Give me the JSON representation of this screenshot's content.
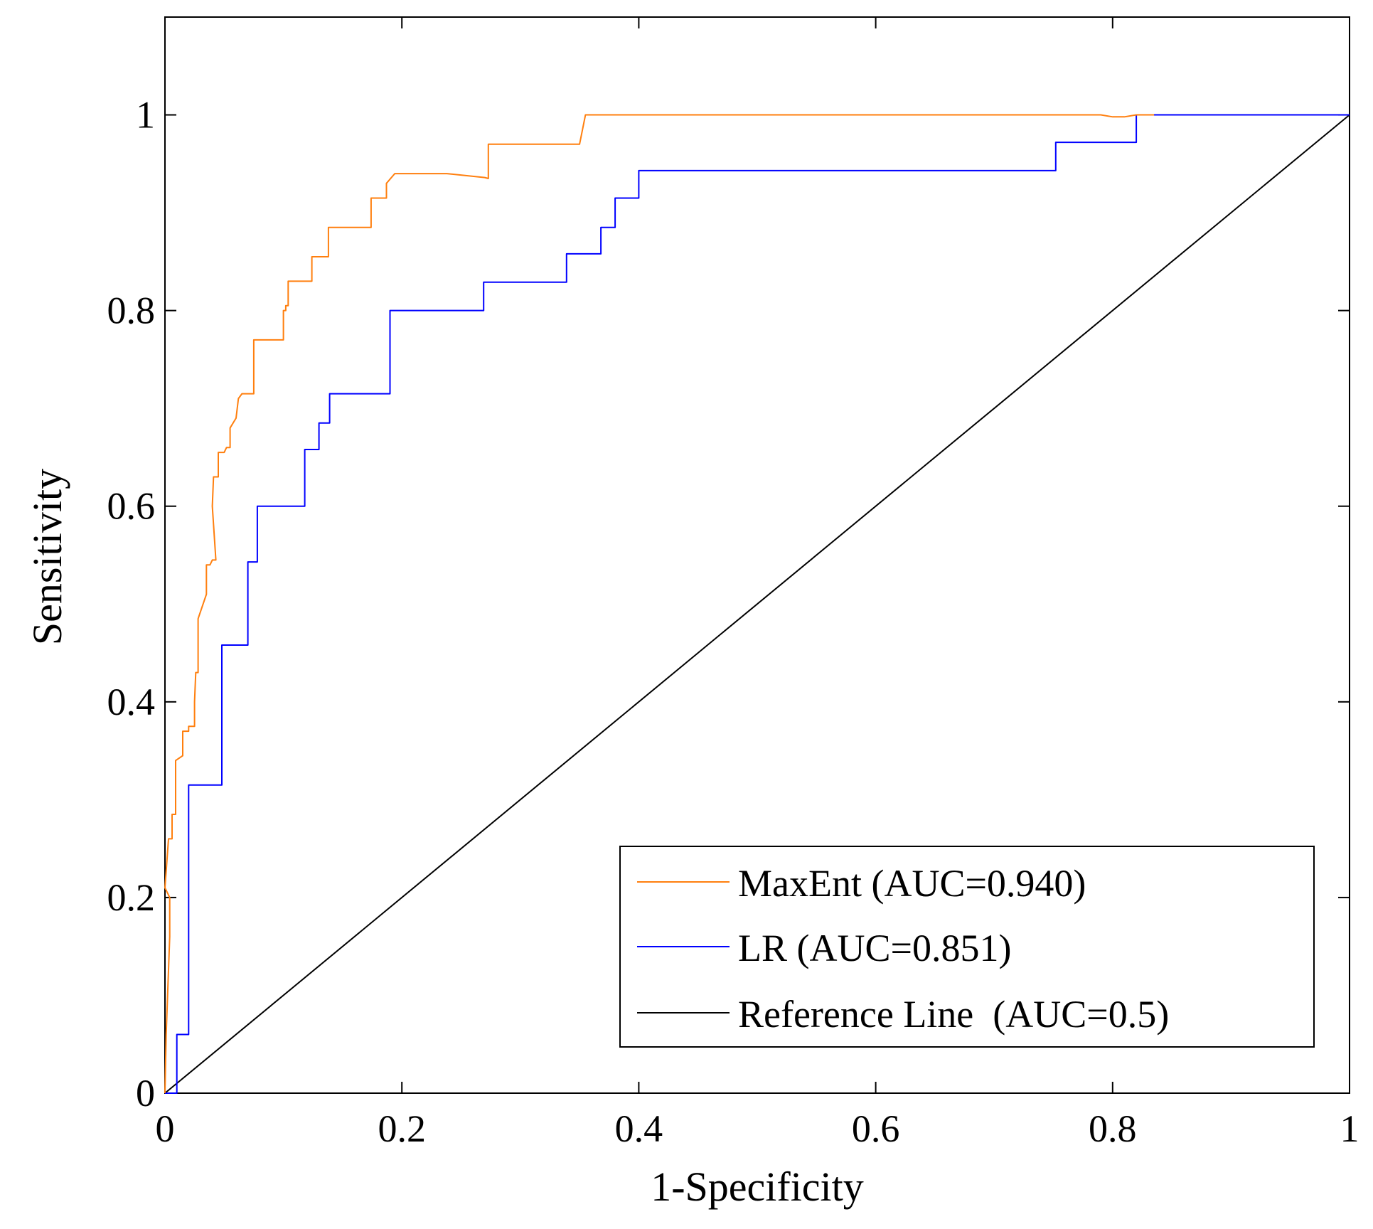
{
  "chart_data": {
    "type": "line",
    "title": "",
    "xlabel": "1-Specificity",
    "ylabel": "Sensitivity",
    "xlim": [
      0,
      1
    ],
    "ylim": [
      0,
      1.1
    ],
    "x_ticks": [
      0,
      0.2,
      0.4,
      0.6,
      0.8,
      1
    ],
    "x_tick_labels": [
      "0",
      "0.2",
      "0.4",
      "0.6",
      "0.8",
      "1"
    ],
    "y_ticks": [
      0,
      0.2,
      0.4,
      0.6,
      0.8,
      1
    ],
    "y_tick_labels": [
      "0",
      "0.2",
      "0.4",
      "0.6",
      "0.8",
      "1"
    ],
    "grid": false,
    "legend_position": "bottom-right",
    "series": [
      {
        "name": "MaxEnt (AUC=0.940)",
        "color": "#ff7f0e",
        "points": [
          [
            0,
            0
          ],
          [
            0.001,
            0.06
          ],
          [
            0.004,
            0.16
          ],
          [
            0.004,
            0.2
          ],
          [
            0,
            0.21
          ],
          [
            0.003,
            0.26
          ],
          [
            0.006,
            0.26
          ],
          [
            0.006,
            0.285
          ],
          [
            0.009,
            0.285
          ],
          [
            0.009,
            0.34
          ],
          [
            0.015,
            0.345
          ],
          [
            0.015,
            0.37
          ],
          [
            0.02,
            0.37
          ],
          [
            0.02,
            0.375
          ],
          [
            0.025,
            0.375
          ],
          [
            0.025,
            0.4
          ],
          [
            0.026,
            0.43
          ],
          [
            0.028,
            0.43
          ],
          [
            0.028,
            0.485
          ],
          [
            0.035,
            0.51
          ],
          [
            0.035,
            0.54
          ],
          [
            0.038,
            0.54
          ],
          [
            0.04,
            0.545
          ],
          [
            0.043,
            0.545
          ],
          [
            0.04,
            0.6
          ],
          [
            0.041,
            0.63
          ],
          [
            0.045,
            0.63
          ],
          [
            0.045,
            0.655
          ],
          [
            0.05,
            0.655
          ],
          [
            0.052,
            0.66
          ],
          [
            0.055,
            0.66
          ],
          [
            0.055,
            0.68
          ],
          [
            0.06,
            0.69
          ],
          [
            0.062,
            0.71
          ],
          [
            0.065,
            0.715
          ],
          [
            0.07,
            0.715
          ],
          [
            0.075,
            0.715
          ],
          [
            0.075,
            0.74
          ],
          [
            0.075,
            0.77
          ],
          [
            0.1,
            0.77
          ],
          [
            0.1,
            0.8
          ],
          [
            0.102,
            0.8
          ],
          [
            0.102,
            0.805
          ],
          [
            0.104,
            0.805
          ],
          [
            0.104,
            0.83
          ],
          [
            0.124,
            0.83
          ],
          [
            0.124,
            0.855
          ],
          [
            0.138,
            0.855
          ],
          [
            0.138,
            0.885
          ],
          [
            0.174,
            0.885
          ],
          [
            0.174,
            0.915
          ],
          [
            0.187,
            0.915
          ],
          [
            0.187,
            0.93
          ],
          [
            0.194,
            0.94
          ],
          [
            0.238,
            0.94
          ],
          [
            0.27,
            0.936
          ],
          [
            0.273,
            0.935
          ],
          [
            0.273,
            0.97
          ],
          [
            0.35,
            0.97
          ],
          [
            0.355,
            1
          ],
          [
            0.79,
            1
          ],
          [
            0.8,
            0.998
          ],
          [
            0.81,
            0.998
          ],
          [
            0.82,
            1
          ],
          [
            0.835,
            1
          ]
        ]
      },
      {
        "name": "LR (AUC=0.851)",
        "color": "#0000ff",
        "points": [
          [
            0,
            0
          ],
          [
            0.01,
            0
          ],
          [
            0.01,
            0.06
          ],
          [
            0.02,
            0.06
          ],
          [
            0.02,
            0.315
          ],
          [
            0.048,
            0.315
          ],
          [
            0.048,
            0.458
          ],
          [
            0.07,
            0.458
          ],
          [
            0.07,
            0.543
          ],
          [
            0.078,
            0.543
          ],
          [
            0.078,
            0.6
          ],
          [
            0.118,
            0.6
          ],
          [
            0.118,
            0.658
          ],
          [
            0.13,
            0.658
          ],
          [
            0.13,
            0.685
          ],
          [
            0.139,
            0.685
          ],
          [
            0.139,
            0.715
          ],
          [
            0.19,
            0.715
          ],
          [
            0.19,
            0.8
          ],
          [
            0.269,
            0.8
          ],
          [
            0.269,
            0.829
          ],
          [
            0.339,
            0.829
          ],
          [
            0.339,
            0.858
          ],
          [
            0.368,
            0.858
          ],
          [
            0.368,
            0.885
          ],
          [
            0.38,
            0.885
          ],
          [
            0.38,
            0.915
          ],
          [
            0.4,
            0.915
          ],
          [
            0.4,
            0.943
          ],
          [
            0.752,
            0.943
          ],
          [
            0.752,
            0.972
          ],
          [
            0.82,
            0.972
          ],
          [
            0.82,
            1
          ],
          [
            1,
            1
          ]
        ]
      },
      {
        "name": "Reference Line  (AUC=0.5)",
        "color": "#000000",
        "points": [
          [
            0,
            0
          ],
          [
            1,
            1
          ]
        ]
      }
    ]
  }
}
